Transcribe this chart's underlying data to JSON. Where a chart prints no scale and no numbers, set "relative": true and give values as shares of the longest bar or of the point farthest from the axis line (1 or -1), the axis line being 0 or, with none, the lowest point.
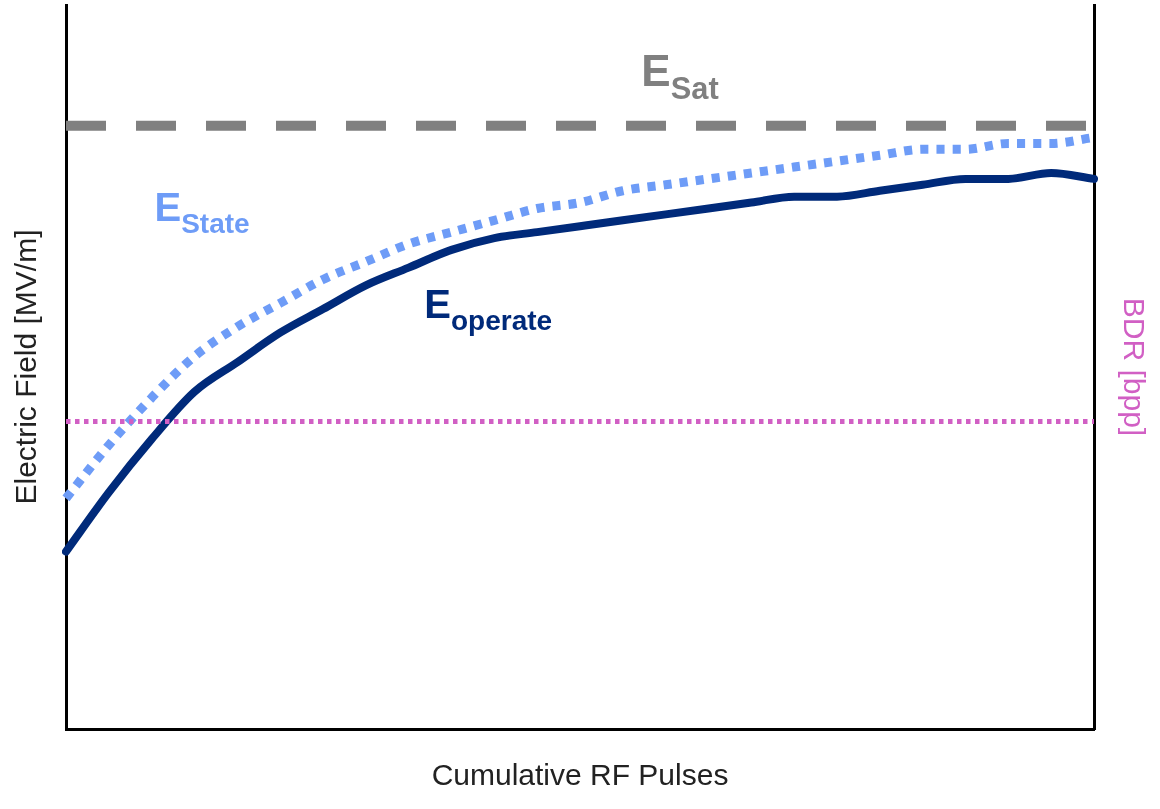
{
  "chart_data": {
    "type": "line",
    "relative": true,
    "xlabel": "Cumulative RF Pulses",
    "ylabel": "Electric Field [MV/m]",
    "y2label": "BDR [bpp]",
    "categories": [
      null,
      null,
      null,
      null,
      null,
      null,
      null,
      null,
      null,
      null,
      null,
      null,
      null,
      null,
      null,
      null,
      null,
      null,
      null,
      null,
      null,
      null,
      null,
      null,
      null
    ],
    "series": [
      {
        "name": "E$_{State}$",
        "color": "#6e9cf7",
        "line_style": "dotted",
        "values": [
          0.39,
          0.48,
          0.56,
          0.63,
          0.68,
          0.72,
          0.76,
          0.79,
          0.82,
          0.84,
          0.86,
          0.88,
          0.89,
          0.91,
          0.92,
          0.93,
          0.94,
          0.95,
          0.96,
          0.97,
          0.98,
          0.98,
          0.99,
          0.99,
          1.0
        ]
      },
      {
        "name": "E$_{operate}$",
        "color": "#002a7a",
        "line_style": "solid",
        "values": [
          0.3,
          0.4,
          0.49,
          0.57,
          0.62,
          0.67,
          0.71,
          0.75,
          0.78,
          0.81,
          0.83,
          0.84,
          0.85,
          0.86,
          0.87,
          0.88,
          0.89,
          0.9,
          0.9,
          0.91,
          0.92,
          0.93,
          0.93,
          0.94,
          0.93
        ]
      }
    ],
    "ref_lines": [
      {
        "axis": "y",
        "value": 1.02,
        "label": "E$_{Sat}$",
        "color": "#808080",
        "line_style": "dashed"
      },
      {
        "axis": "y",
        "value": 0.52,
        "color": "#d15fc4",
        "line_style": "dotted"
      }
    ],
    "legend": false,
    "grid": false,
    "tick_labels": false,
    "marker": "none"
  }
}
